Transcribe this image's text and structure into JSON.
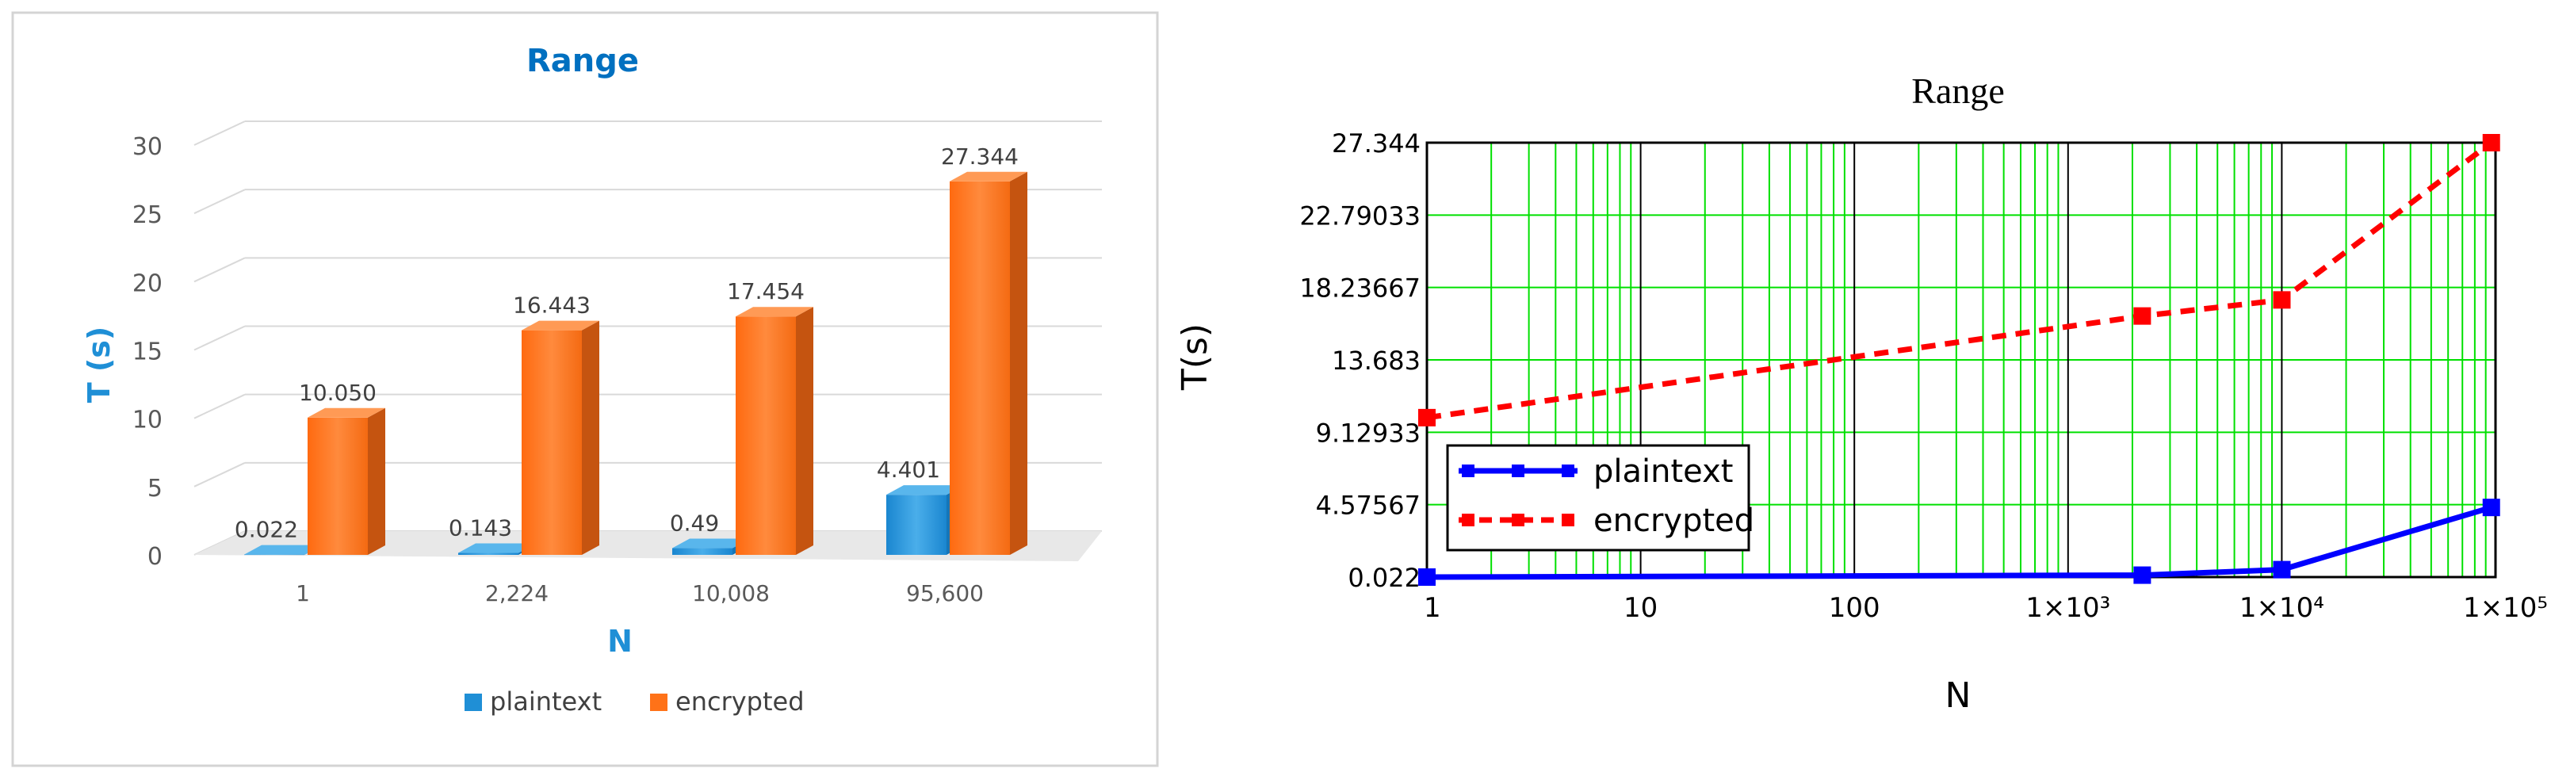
{
  "chart_data": [
    {
      "type": "bar",
      "title": "Range",
      "xlabel": "N",
      "ylabel": "T (s)",
      "categories": [
        "1",
        "2,224",
        "10,008",
        "95,600"
      ],
      "series": [
        {
          "name": "plaintext",
          "values": [
            0.022,
            0.143,
            0.49,
            4.401
          ],
          "labels": [
            "0.022",
            "0.143",
            "0.49",
            "4.401"
          ]
        },
        {
          "name": "encrypted",
          "values": [
            10.05,
            16.443,
            17.454,
            27.344
          ],
          "labels": [
            "10.050",
            "16.443",
            "17.454",
            "27.344"
          ]
        }
      ],
      "ylim": [
        0,
        30
      ],
      "yticks": [
        0,
        5,
        10,
        15,
        20,
        25,
        30
      ],
      "grid": true,
      "legend": "bottom",
      "colors": {
        "plaintext": "#1f8fd6",
        "encrypted": "#ff7218",
        "title": "#0070c0",
        "axis_label": "#1f8fd6"
      }
    },
    {
      "type": "line",
      "title": "Range",
      "xlabel": "N",
      "ylabel": "T(s)",
      "x_scale": "log",
      "xlim": [
        1,
        100000
      ],
      "xtick_labels": [
        "1",
        "10",
        "100",
        "1×10³",
        "1×10⁴",
        "1×10⁵"
      ],
      "ylim": [
        0.022,
        27.344
      ],
      "ytick_labels": [
        "0.022",
        "4.57567",
        "9.12933",
        "13.683",
        "18.23667",
        "22.79033",
        "27.344"
      ],
      "series": [
        {
          "name": "plaintext",
          "x": [
            1,
            2224,
            10008,
            95600
          ],
          "y": [
            0.022,
            0.143,
            0.49,
            4.401
          ],
          "color": "#0000ff",
          "style": "solid"
        },
        {
          "name": "encrypted",
          "x": [
            1,
            2224,
            10008,
            95600
          ],
          "y": [
            10.05,
            16.443,
            17.454,
            27.344
          ],
          "color": "#ff0000",
          "style": "dashed"
        }
      ],
      "grid": true,
      "legend": "lower-left",
      "colors": {
        "grid_minor": "#00e000",
        "grid_major": "#000000"
      }
    }
  ]
}
